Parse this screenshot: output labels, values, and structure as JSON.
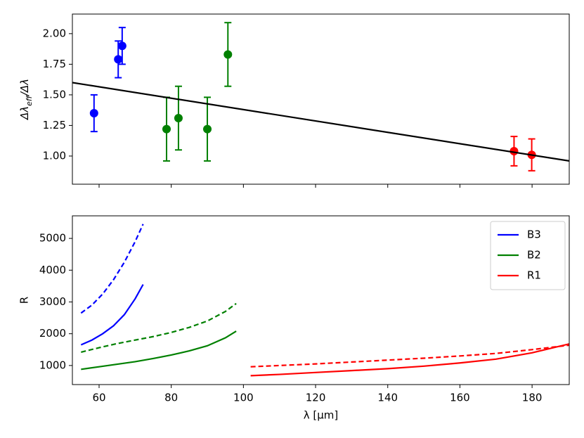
{
  "chart_data": [
    {
      "type": "scatter",
      "ylabel": [
        "Δλ",
        "eff",
        "/Δλ"
      ],
      "xlim": [
        52.6,
        190.3
      ],
      "ylim": [
        0.77,
        2.16
      ],
      "xticks": [
        60,
        80,
        100,
        120,
        140,
        160,
        180
      ],
      "yticks": [
        {
          "value": 1,
          "label": "1.00"
        },
        {
          "value": 1.25,
          "label": "1.25"
        },
        {
          "value": 1.5,
          "label": "1.50"
        },
        {
          "value": 1.75,
          "label": "1.75"
        },
        {
          "value": 2,
          "label": "2.00"
        }
      ],
      "series": [
        {
          "color": "#0000ff",
          "x": [
            58.6,
            65.3,
            66.4
          ],
          "values": [
            1.35,
            1.79,
            1.9
          ],
          "errors": [
            0.15,
            0.15,
            0.15
          ]
        },
        {
          "color": "#008000",
          "x": [
            78.7,
            82.0,
            90.0,
            95.7
          ],
          "values": [
            1.22,
            1.31,
            1.22,
            1.83
          ],
          "errors": [
            0.26,
            0.26,
            0.26,
            0.26
          ]
        },
        {
          "color": "#ff0000",
          "x": [
            175.0,
            179.9
          ],
          "values": [
            1.04,
            1.01
          ],
          "errors": [
            0.12,
            0.13
          ]
        },
        {
          "color": "#000000",
          "style": "solid",
          "x": [
            52.6,
            190.3
          ],
          "values": [
            1.6,
            0.96
          ]
        }
      ]
    },
    {
      "type": "line",
      "xlabel": "λ [μm]",
      "ylabel": "R",
      "xlim": [
        52.6,
        190.3
      ],
      "ylim": [
        400,
        5710
      ],
      "xticks": [
        60,
        80,
        100,
        120,
        140,
        160,
        180
      ],
      "yticks": [
        1000,
        2000,
        3000,
        4000,
        5000
      ],
      "legend": "upper right",
      "series": [
        {
          "name": "B3",
          "color": "#0000ff",
          "style": "solid",
          "x": [
            55,
            58,
            61,
            64,
            67,
            70,
            72.2
          ],
          "values": [
            1650,
            1800,
            2000,
            2250,
            2600,
            3100,
            3550
          ]
        },
        {
          "color": "#0000ff",
          "style": "dashed",
          "x": [
            55,
            58,
            61,
            64,
            67,
            70,
            72.2
          ],
          "values": [
            2650,
            2900,
            3250,
            3700,
            4250,
            4900,
            5450
          ]
        },
        {
          "name": "B2",
          "color": "#008000",
          "style": "solid",
          "x": [
            55,
            60,
            65,
            70,
            75,
            80,
            85,
            90,
            95,
            98
          ],
          "values": [
            880,
            960,
            1040,
            1120,
            1220,
            1330,
            1460,
            1620,
            1870,
            2080
          ]
        },
        {
          "color": "#008000",
          "style": "dashed",
          "x": [
            55,
            60,
            65,
            70,
            75,
            80,
            85,
            90,
            95,
            98
          ],
          "values": [
            1420,
            1560,
            1690,
            1800,
            1910,
            2040,
            2200,
            2400,
            2700,
            2950
          ]
        },
        {
          "name": "R1",
          "color": "#ff0000",
          "style": "solid",
          "x": [
            102,
            110,
            120,
            130,
            140,
            150,
            160,
            170,
            180,
            190.3
          ],
          "values": [
            680,
            720,
            780,
            840,
            900,
            980,
            1080,
            1200,
            1400,
            1680
          ]
        },
        {
          "color": "#ff0000",
          "style": "dashed",
          "x": [
            102,
            110,
            120,
            130,
            140,
            150,
            160,
            170,
            180,
            190.3
          ],
          "values": [
            960,
            1000,
            1050,
            1110,
            1170,
            1230,
            1300,
            1380,
            1500,
            1640
          ]
        }
      ]
    }
  ]
}
